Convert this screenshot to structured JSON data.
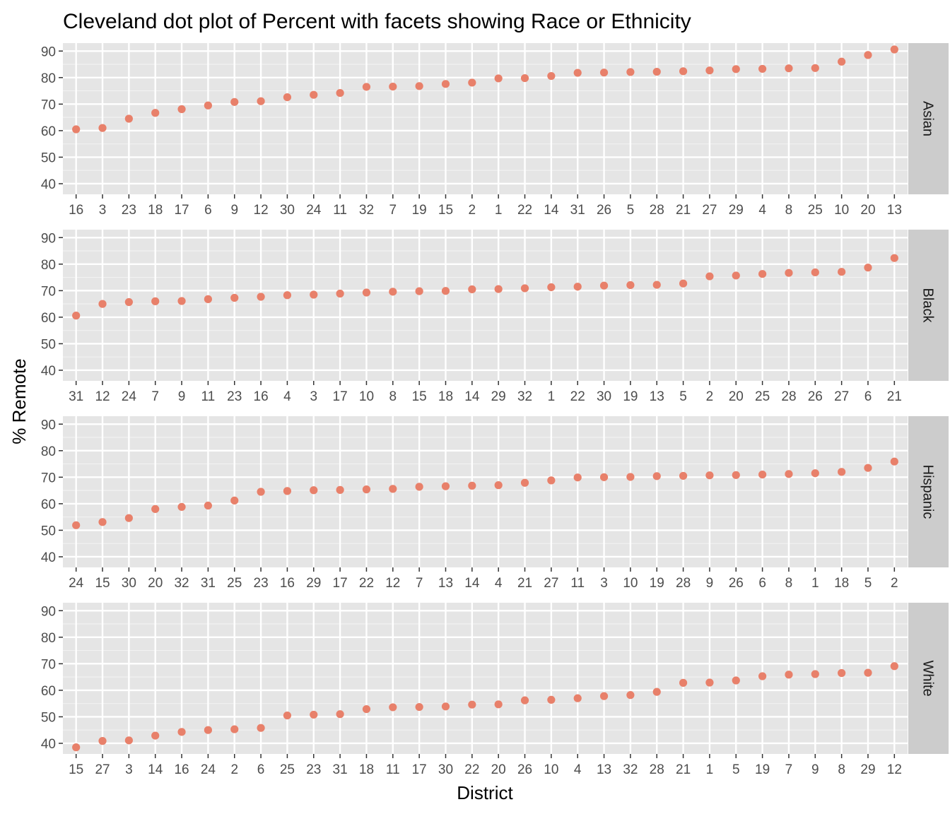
{
  "chart_data": {
    "type": "scatter",
    "title": "Cleveland dot plot of Percent with facets showing Race or Ethnicity",
    "xlabel": "District",
    "ylabel": "% Remote",
    "ylim": [
      36,
      93
    ],
    "yticks": [
      40,
      50,
      60,
      70,
      80,
      90
    ],
    "point_color": "#E8806A",
    "panel_background": "#E5E5E5",
    "strip_background": "#CCCCCC",
    "grid": true,
    "facets": [
      {
        "label": "Asian",
        "x": [
          "16",
          "3",
          "23",
          "18",
          "17",
          "6",
          "9",
          "12",
          "30",
          "24",
          "11",
          "32",
          "7",
          "19",
          "15",
          "2",
          "1",
          "22",
          "14",
          "31",
          "26",
          "5",
          "28",
          "21",
          "27",
          "29",
          "4",
          "8",
          "25",
          "10",
          "20",
          "13"
        ],
        "values": [
          60.5,
          61.0,
          64.5,
          66.7,
          68.1,
          69.5,
          70.8,
          71.1,
          72.6,
          73.5,
          74.2,
          76.5,
          76.6,
          76.8,
          77.6,
          78.1,
          79.7,
          79.8,
          80.6,
          81.8,
          81.9,
          82.1,
          82.2,
          82.4,
          82.7,
          83.2,
          83.3,
          83.5,
          83.6,
          86.0,
          88.5,
          90.6
        ]
      },
      {
        "label": "Black",
        "x": [
          "31",
          "12",
          "24",
          "7",
          "9",
          "11",
          "23",
          "16",
          "4",
          "3",
          "17",
          "10",
          "8",
          "15",
          "18",
          "14",
          "29",
          "32",
          "1",
          "22",
          "30",
          "19",
          "13",
          "5",
          "2",
          "20",
          "25",
          "28",
          "26",
          "27",
          "6",
          "21"
        ],
        "values": [
          60.6,
          65.0,
          65.7,
          66.0,
          66.1,
          66.8,
          67.3,
          67.7,
          68.3,
          68.5,
          68.9,
          69.3,
          69.6,
          69.8,
          69.9,
          70.5,
          70.6,
          70.9,
          71.3,
          71.5,
          71.9,
          72.1,
          72.2,
          72.7,
          75.4,
          75.7,
          76.3,
          76.7,
          76.9,
          77.1,
          78.7,
          82.3
        ]
      },
      {
        "label": "Hispanic",
        "x": [
          "24",
          "15",
          "30",
          "20",
          "32",
          "31",
          "25",
          "23",
          "16",
          "29",
          "17",
          "22",
          "12",
          "7",
          "13",
          "14",
          "4",
          "21",
          "27",
          "11",
          "3",
          "10",
          "19",
          "28",
          "9",
          "26",
          "6",
          "8",
          "1",
          "18",
          "5",
          "2"
        ],
        "values": [
          51.9,
          53.1,
          54.6,
          58.0,
          58.8,
          59.3,
          61.2,
          64.5,
          64.8,
          65.1,
          65.2,
          65.4,
          65.6,
          66.4,
          66.6,
          66.8,
          67.0,
          67.9,
          68.8,
          69.9,
          70.0,
          70.1,
          70.4,
          70.5,
          70.7,
          70.8,
          71.0,
          71.2,
          71.5,
          72.0,
          73.5,
          75.9
        ]
      },
      {
        "label": "White",
        "x": [
          "15",
          "27",
          "3",
          "14",
          "16",
          "24",
          "2",
          "6",
          "25",
          "23",
          "31",
          "18",
          "11",
          "17",
          "30",
          "22",
          "20",
          "26",
          "10",
          "4",
          "13",
          "32",
          "28",
          "21",
          "1",
          "5",
          "19",
          "7",
          "9",
          "8",
          "29",
          "12"
        ],
        "values": [
          38.5,
          40.9,
          41.1,
          42.9,
          44.3,
          45.0,
          45.3,
          45.8,
          50.5,
          50.8,
          51.0,
          52.9,
          53.6,
          53.7,
          53.9,
          54.6,
          54.7,
          56.2,
          56.4,
          57.0,
          57.8,
          58.2,
          59.4,
          62.8,
          62.9,
          63.7,
          65.3,
          65.9,
          66.1,
          66.5,
          66.6,
          69.1
        ]
      }
    ]
  }
}
